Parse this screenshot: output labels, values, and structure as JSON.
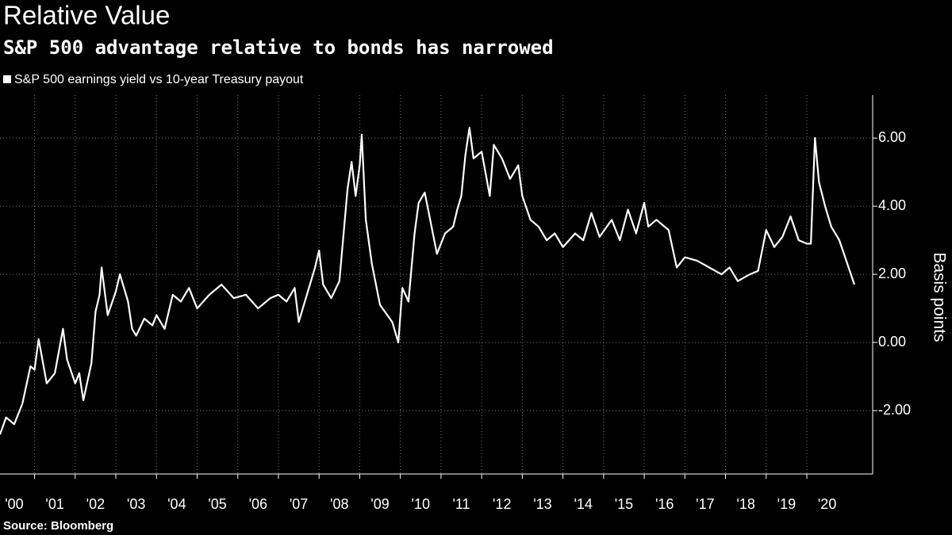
{
  "chart_data": {
    "type": "line",
    "title": "Relative Value",
    "subtitle": "S&P 500 advantage relative to bonds has narrowed",
    "source": "Source: Bloomberg",
    "y_label": "Basis points",
    "x": [
      2000.15,
      2000.3,
      2000.5,
      2000.7,
      2000.9,
      2001.0,
      2001.1,
      2001.3,
      2001.5,
      2001.7,
      2001.8,
      2002.0,
      2002.1,
      2002.2,
      2002.4,
      2002.5,
      2002.6,
      2002.65,
      2002.8,
      2003.0,
      2003.1,
      2003.3,
      2003.4,
      2003.5,
      2003.7,
      2003.9,
      2004.0,
      2004.2,
      2004.4,
      2004.6,
      2004.8,
      2005.0,
      2005.3,
      2005.6,
      2005.9,
      2006.2,
      2006.5,
      2006.8,
      2007.0,
      2007.2,
      2007.4,
      2007.5,
      2007.7,
      2007.9,
      2008.0,
      2008.1,
      2008.3,
      2008.5,
      2008.7,
      2008.8,
      2008.9,
      2009.0,
      2009.05,
      2009.15,
      2009.3,
      2009.5,
      2009.8,
      2009.95,
      2010.05,
      2010.2,
      2010.35,
      2010.45,
      2010.6,
      2010.75,
      2010.9,
      2011.1,
      2011.3,
      2011.4,
      2011.5,
      2011.6,
      2011.7,
      2011.8,
      2012.0,
      2012.2,
      2012.3,
      2012.5,
      2012.7,
      2012.9,
      2013.0,
      2013.2,
      2013.4,
      2013.6,
      2013.8,
      2014.0,
      2014.3,
      2014.5,
      2014.7,
      2014.9,
      2015.2,
      2015.4,
      2015.6,
      2015.8,
      2016.0,
      2016.1,
      2016.3,
      2016.6,
      2016.8,
      2017.0,
      2017.3,
      2017.6,
      2017.9,
      2018.1,
      2018.3,
      2018.6,
      2018.8,
      2019.0,
      2019.2,
      2019.4,
      2019.6,
      2019.8,
      2020.0,
      2020.1,
      2020.2,
      2020.3,
      2020.45,
      2020.6,
      2020.8,
      2021.0,
      2021.17
    ],
    "series": [
      {
        "name": "S&P 500 earnings yield vs 10-year Treasury payout",
        "color": "#ffffff",
        "values": [
          -2.7,
          -2.2,
          -2.4,
          -1.8,
          -0.7,
          -0.8,
          0.1,
          -1.2,
          -0.9,
          0.4,
          -0.5,
          -1.2,
          -0.9,
          -1.7,
          -0.6,
          0.9,
          1.4,
          2.2,
          0.8,
          1.5,
          2.0,
          1.2,
          0.4,
          0.2,
          0.7,
          0.5,
          0.8,
          0.4,
          1.4,
          1.2,
          1.6,
          1.0,
          1.4,
          1.7,
          1.3,
          1.4,
          1.0,
          1.3,
          1.4,
          1.2,
          1.6,
          0.6,
          1.4,
          2.2,
          2.7,
          1.7,
          1.3,
          1.8,
          4.5,
          5.3,
          4.3,
          5.2,
          6.1,
          3.6,
          2.3,
          1.1,
          0.6,
          0.0,
          1.6,
          1.2,
          3.2,
          4.1,
          4.4,
          3.5,
          2.6,
          3.2,
          3.4,
          3.9,
          4.3,
          5.5,
          6.3,
          5.4,
          5.6,
          4.3,
          5.8,
          5.4,
          4.8,
          5.2,
          4.3,
          3.6,
          3.4,
          3.0,
          3.2,
          2.8,
          3.2,
          3.0,
          3.8,
          3.1,
          3.6,
          3.0,
          3.9,
          3.2,
          4.1,
          3.4,
          3.6,
          3.3,
          2.2,
          2.5,
          2.4,
          2.2,
          2.0,
          2.2,
          1.8,
          2.0,
          2.1,
          3.3,
          2.8,
          3.1,
          3.7,
          3.0,
          2.9,
          2.9,
          6.0,
          4.7,
          4.0,
          3.4,
          3.0,
          2.3,
          1.7
        ]
      }
    ],
    "xlim": [
      2000.15,
      2021.62
    ],
    "xticks": [
      {
        "value": 2000,
        "label": "'00"
      },
      {
        "value": 2001,
        "label": "'01"
      },
      {
        "value": 2002,
        "label": "'02"
      },
      {
        "value": 2003,
        "label": "'03"
      },
      {
        "value": 2004,
        "label": "'04"
      },
      {
        "value": 2005,
        "label": "'05"
      },
      {
        "value": 2006,
        "label": "'06"
      },
      {
        "value": 2007,
        "label": "'07"
      },
      {
        "value": 2008,
        "label": "'08"
      },
      {
        "value": 2009,
        "label": "'09"
      },
      {
        "value": 2010,
        "label": "'10"
      },
      {
        "value": 2011,
        "label": "'11"
      },
      {
        "value": 2012,
        "label": "'12"
      },
      {
        "value": 2013,
        "label": "'13"
      },
      {
        "value": 2014,
        "label": "'14"
      },
      {
        "value": 2015,
        "label": "'15"
      },
      {
        "value": 2016,
        "label": "'16"
      },
      {
        "value": 2017,
        "label": "'17"
      },
      {
        "value": 2018,
        "label": "'18"
      },
      {
        "value": 2019,
        "label": "'19"
      },
      {
        "value": 2020,
        "label": "'20"
      }
    ],
    "ylim": [
      -3.86,
      7.26
    ],
    "yticks": [
      {
        "value": -2,
        "label": "-2.00"
      },
      {
        "value": 0,
        "label": "0.00"
      },
      {
        "value": 2,
        "label": "2.00"
      },
      {
        "value": 4,
        "label": "4.00"
      },
      {
        "value": 6,
        "label": "6.00"
      }
    ],
    "grid": true
  }
}
